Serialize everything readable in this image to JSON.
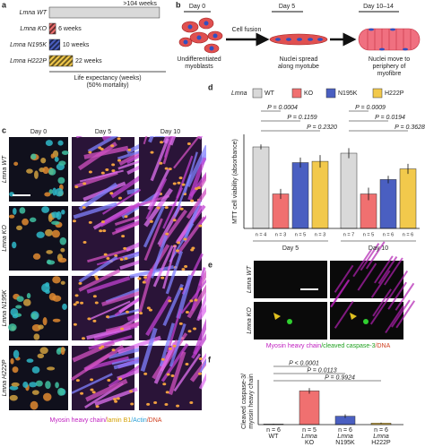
{
  "panel_labels": [
    "a",
    "b",
    "c",
    "d",
    "e",
    "f"
  ],
  "chart_data": [
    {
      "type": "hbar",
      "categories": [
        "Lmna WT",
        "Lmna KO",
        "Lmna N195K",
        "Lmna H222P"
      ],
      "values": [
        104,
        6,
        10,
        22
      ],
      "value_labels": [
        ">104 weeks",
        "6 weeks",
        "10 weeks",
        "22 weeks"
      ],
      "colors": [
        "#d9d9d9",
        "#f07070",
        "#4a5fc1",
        "#f2c94c"
      ],
      "hatched": [
        false,
        true,
        true,
        true
      ],
      "xlabel": [
        "Life expectancy (weeks)",
        "(50% mortality)"
      ],
      "xlim": [
        0,
        110
      ]
    },
    {
      "type": "grouped_bar",
      "legend_title": "Lmna",
      "groups": [
        "Day 5",
        "Day 10"
      ],
      "ylabel": "MTT cell viability (absorbance)",
      "ylim": [
        0,
        1.5
      ],
      "series": [
        {
          "name": "WT",
          "color": "#d9d9d9",
          "values": [
            1.3,
            1.2
          ],
          "errors": [
            0.04,
            0.08
          ],
          "n_labels": [
            "n = 4",
            "n = 7"
          ]
        },
        {
          "name": "KO",
          "color": "#f07070",
          "values": [
            0.55,
            0.55
          ],
          "errors": [
            0.08,
            0.1
          ],
          "n_labels": [
            "n = 3",
            "n = 5"
          ]
        },
        {
          "name": "N195K",
          "color": "#4a5fc1",
          "values": [
            1.05,
            0.78
          ],
          "errors": [
            0.08,
            0.06
          ],
          "n_labels": [
            "n = 5",
            "n = 6"
          ]
        },
        {
          "name": "H222P",
          "color": "#f2c94c",
          "values": [
            1.07,
            0.95
          ],
          "errors": [
            0.1,
            0.08
          ],
          "n_labels": [
            "n = 3",
            "n = 6"
          ]
        }
      ],
      "annotations": [
        [
          "P = 0.0004",
          "P = 0.1159",
          "P = 0.2320"
        ],
        [
          "P = 0.0009",
          "P = 0.0194",
          "P = 0.3628"
        ]
      ]
    },
    {
      "type": "bar",
      "categories": [
        [
          "WT"
        ],
        [
          "Lmna",
          "KO"
        ],
        [
          "Lmna",
          "N195K"
        ],
        [
          "Lmna",
          "H222P"
        ]
      ],
      "values": [
        0.03,
        1.8,
        0.45,
        0.08
      ],
      "errors": [
        0.02,
        0.15,
        0.1,
        0.03
      ],
      "colors": [
        "#d9d9d9",
        "#f07070",
        "#4a5fc1",
        "#f2c94c"
      ],
      "n_labels": [
        "n = 6",
        "n = 5",
        "n = 6",
        "n = 6"
      ],
      "ylabel": [
        "Cleaved caspase-3/",
        "myosin heavy chain"
      ],
      "ylim": [
        0,
        2.2
      ],
      "annotations": [
        "P < 0.0001",
        "P = 0.0113",
        "P = 0.9924"
      ]
    }
  ],
  "diagram": {
    "days": [
      "Day 0",
      "Day 5",
      "Day 10–14"
    ],
    "step": "Cell fusion",
    "captions": [
      [
        "Undifferentiated",
        "myoblasts"
      ],
      [
        "Nuclei spread",
        "along myotube"
      ],
      [
        "Nuclei move to",
        "periphery of",
        "myofibre"
      ]
    ]
  },
  "micrographs": {
    "columns": [
      "Day 0",
      "Day 5",
      "Day 10"
    ],
    "rows": [
      "Lmna WT",
      "Lmna KO",
      "Lmna N195K",
      "Lmna H222P"
    ],
    "caption": [
      {
        "text": "Myosin heavy chain/",
        "color": "#c020c0"
      },
      {
        "text": "lamin B1",
        "color": "#d4a000"
      },
      {
        "text": "/Actin",
        "color": "#2a9fd6"
      },
      {
        "text": "/DNA",
        "color": "#d04020"
      }
    ]
  },
  "staining": {
    "rows": [
      "Lmna WT",
      "Lmna KO"
    ],
    "caption": [
      {
        "text": "Myosin heavy chain",
        "color": "#c020c0"
      },
      {
        "text": "/cleaved caspase-3",
        "color": "#20a020"
      },
      {
        "text": "/DNA",
        "color": "#d04020"
      }
    ]
  }
}
